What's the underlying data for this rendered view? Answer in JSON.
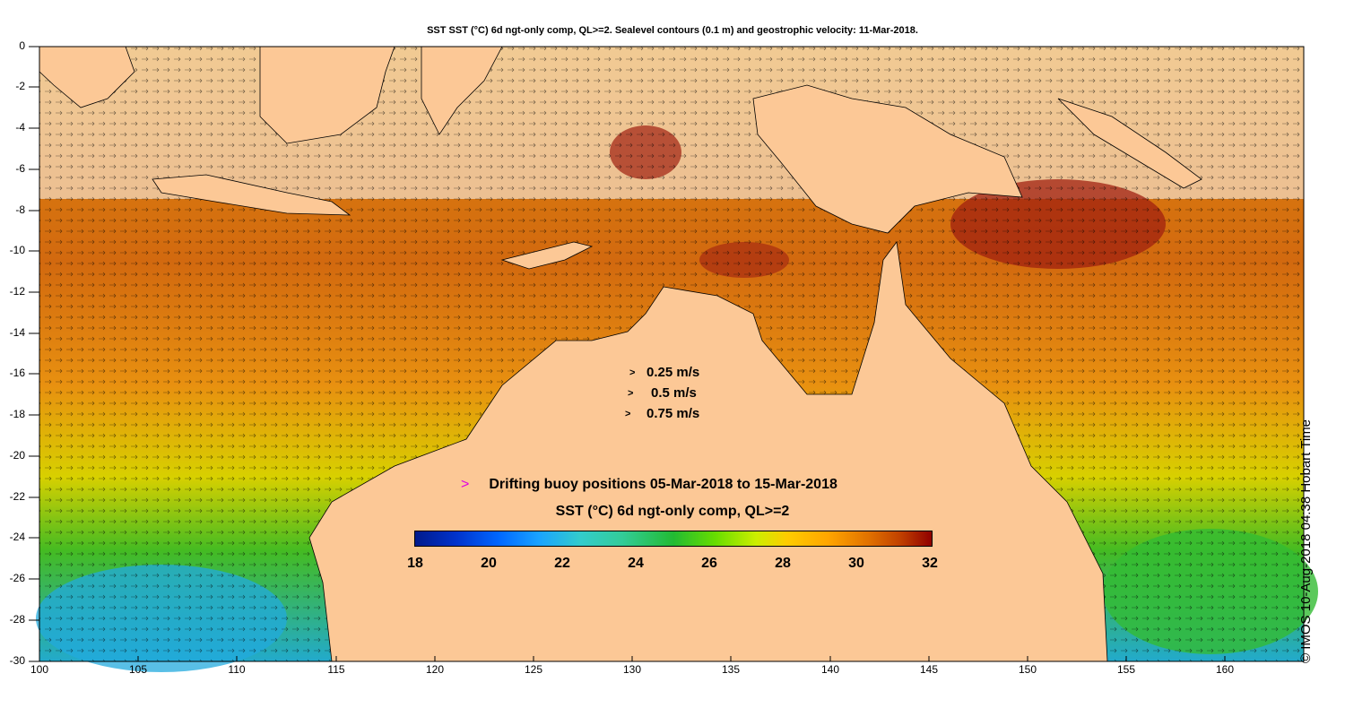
{
  "title": "SST SST (°C) 6d ngt-only comp, QL>=2. Sealevel contours (0.1 m) and geostrophic velocity: 11-Mar-2018.",
  "axes": {
    "y_labels": [
      "0",
      "-2",
      "-4",
      "-6",
      "-8",
      "-10",
      "-12",
      "-14",
      "-16",
      "-18",
      "-20",
      "-22",
      "-24",
      "-26",
      "-28",
      "-30"
    ],
    "x_labels": [
      "100",
      "105",
      "110",
      "115",
      "120",
      "125",
      "130",
      "135",
      "140",
      "145",
      "150",
      "155",
      "160"
    ]
  },
  "velocity_scale": {
    "labels": [
      "0.25 m/s",
      "0.5 m/s",
      "0.75 m/s"
    ],
    "arrow_glyph": ">"
  },
  "buoys": {
    "marker": ">",
    "label": "Drifting buoy positions 05-Mar-2018 to 15-Mar-2018",
    "marker_color": "#e000e0"
  },
  "colorbar": {
    "title": "SST (°C) 6d ngt-only comp, QL>=2",
    "ticks": [
      "18",
      "20",
      "22",
      "24",
      "26",
      "28",
      "30",
      "32"
    ]
  },
  "credit": "© IMOS 10-Aug-2018 04:38 Hobart Time",
  "colors": {
    "land": "#fcc896",
    "ocean_warm": "#d2690f",
    "ocean_hot": "#a02010",
    "ocean_mid": "#f0a000",
    "ocean_green": "#44bb22",
    "ocean_cool": "#22aacc",
    "coast_accent": "#33cccc"
  }
}
